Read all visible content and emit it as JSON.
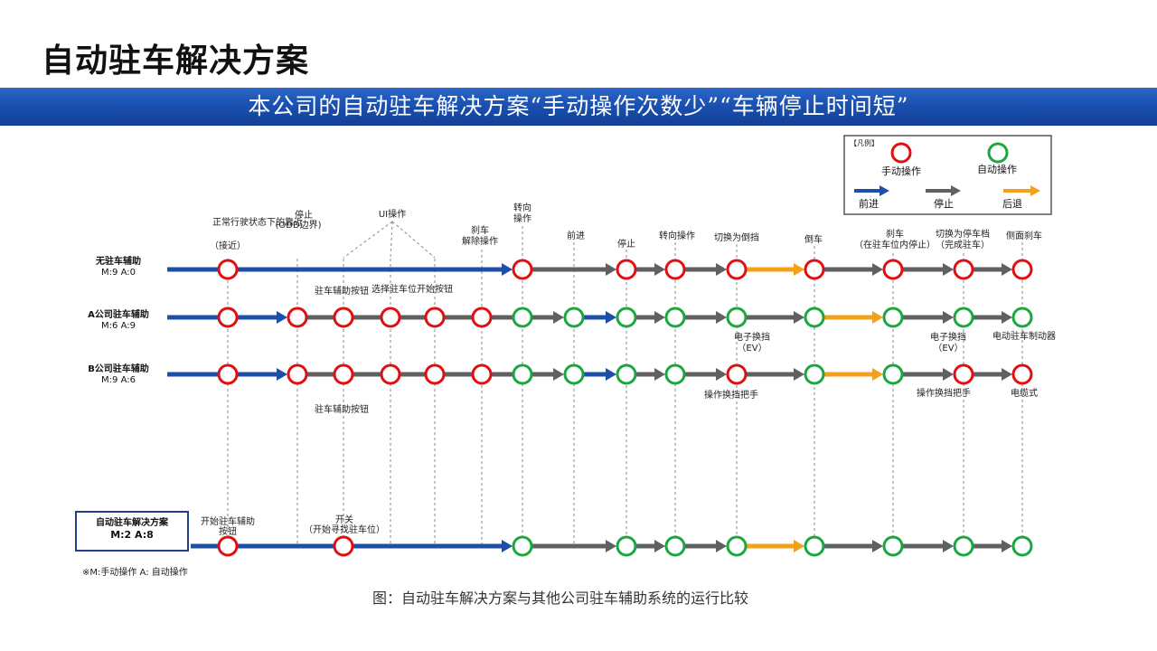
{
  "page": {
    "title": "自动驻车解决方案",
    "banner": "本公司的自动驻车解决方案“手动操作次数少”“车辆停止时间短”",
    "caption": "图：自动驻车解决方案与其他公司驻车辅助系统的运行比较",
    "footnote": "※M:手动操作  A: 自动操作"
  },
  "legend": {
    "title": "【凡例】",
    "manual": "手动操作",
    "auto": "自动操作",
    "forward": "前进",
    "stop": "停止",
    "reverse": "后退"
  },
  "colors": {
    "manual": "#e01010",
    "auto": "#1aa83e",
    "forward": "#1d4fa8",
    "stop": "#606060",
    "reverse": "#f4a11a",
    "banner": "#1a4fae"
  },
  "rows": [
    {
      "name": "无驻车辅助",
      "counts": "M:9 A:0"
    },
    {
      "name": "A公司驻车辅助",
      "counts": "M:6 A:9"
    },
    {
      "name": "B公司驻车辅助",
      "counts": "M:9 A:6"
    },
    {
      "name": "自动驻车解决方案",
      "counts": "M:2 A:8"
    }
  ],
  "top_labels": [
    {
      "lines": [
        "正常行驶状态下的靠近"
      ]
    },
    {
      "lines": [
        "（接近）"
      ]
    },
    {
      "lines": [
        "停止",
        "(ODD边界)"
      ]
    },
    {
      "lines": [
        "UI操作"
      ]
    },
    {
      "lines": [
        "刹车",
        "解除操作"
      ]
    },
    {
      "lines": [
        "转向",
        "操作"
      ]
    },
    {
      "lines": [
        "前进"
      ]
    },
    {
      "lines": [
        "停止"
      ]
    },
    {
      "lines": [
        "转向操作"
      ]
    },
    {
      "lines": [
        "切换为倒挡"
      ]
    },
    {
      "lines": [
        "倒车"
      ]
    },
    {
      "lines": [
        "刹车",
        "（在驻车位内停止）"
      ]
    },
    {
      "lines": [
        "切换为停车档",
        "（完成驻车）"
      ]
    },
    {
      "lines": [
        "侧面刹车"
      ]
    }
  ],
  "annotations": [
    {
      "lines": [
        "驻车辅助按钮"
      ]
    },
    {
      "lines": [
        "选择驻车位开始按钮"
      ]
    },
    {
      "lines": [
        "电子换挡",
        "（EV）"
      ]
    },
    {
      "lines": [
        "电子换挡",
        "（EV）"
      ]
    },
    {
      "lines": [
        "电动驻车制动器"
      ]
    },
    {
      "lines": [
        "驻车辅助按钮"
      ]
    },
    {
      "lines": [
        "操作换挡把手"
      ]
    },
    {
      "lines": [
        "操作换挡把手"
      ]
    },
    {
      "lines": [
        "电缆式"
      ]
    },
    {
      "lines": [
        "开始驻车辅助",
        "按钮"
      ]
    },
    {
      "lines": [
        "开关",
        "（开始寻找驻车位）"
      ]
    }
  ]
}
